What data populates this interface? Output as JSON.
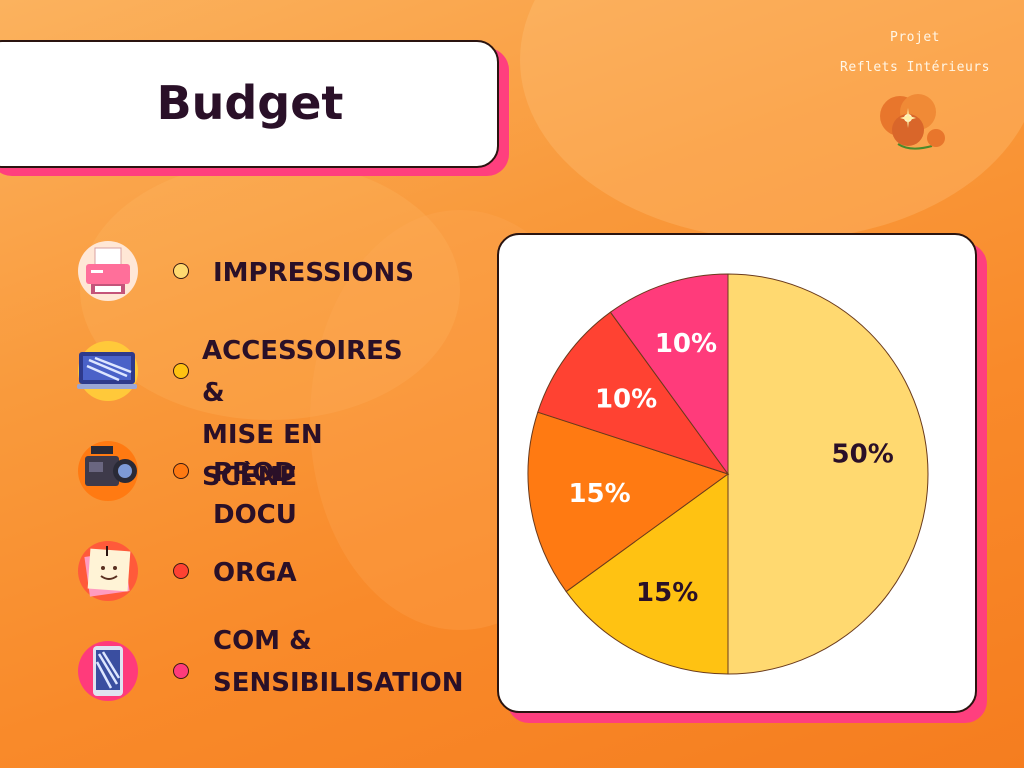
{
  "header": {
    "title": "Budget"
  },
  "brand": {
    "line1": "Projet",
    "line2": "Reflets Intérieurs",
    "logo_icon": "poppy-flower-icon"
  },
  "colors": {
    "title_shadow": "#ff3f7e",
    "impressions": "#ffd970",
    "accessoires": "#ffc212",
    "prod_docu": "#ff7a12",
    "orga": "#ff4232",
    "com": "#ff3b7b"
  },
  "legend": [
    {
      "label": "IMPRESSIONS",
      "icon": "printer-icon",
      "color": "#ffd970"
    },
    {
      "label": "ACCESSOIRES &\nMISE EN SCÈNE",
      "icon": "laptop-icon",
      "color": "#ffc212"
    },
    {
      "label": "PROD DOCU",
      "icon": "video-camera-icon",
      "color": "#ff7a12"
    },
    {
      "label": "ORGA",
      "icon": "sticky-note-icon",
      "color": "#ff4232"
    },
    {
      "label": "COM &\nSENSIBILISATION",
      "icon": "tablet-icon",
      "color": "#ff3b7b"
    }
  ],
  "chart_data": {
    "type": "pie",
    "categories": [
      "IMPRESSIONS",
      "ACCESSOIRES & MISE EN SCÈNE",
      "PROD DOCU",
      "ORGA",
      "COM & SENSIBILISATION"
    ],
    "values": [
      50,
      15,
      15,
      10,
      10
    ],
    "labels": [
      "50%",
      "15%",
      "15%",
      "10%",
      "10%"
    ],
    "colors": [
      "#ffd970",
      "#ffc212",
      "#ff7a12",
      "#ff4232",
      "#ff3b7b"
    ],
    "label_colors": [
      "#2a1028",
      "#2a1028",
      "#ffffff",
      "#ffffff",
      "#ffffff"
    ],
    "start_angle_deg": 0,
    "direction": "clockwise",
    "legend_position": "left"
  }
}
